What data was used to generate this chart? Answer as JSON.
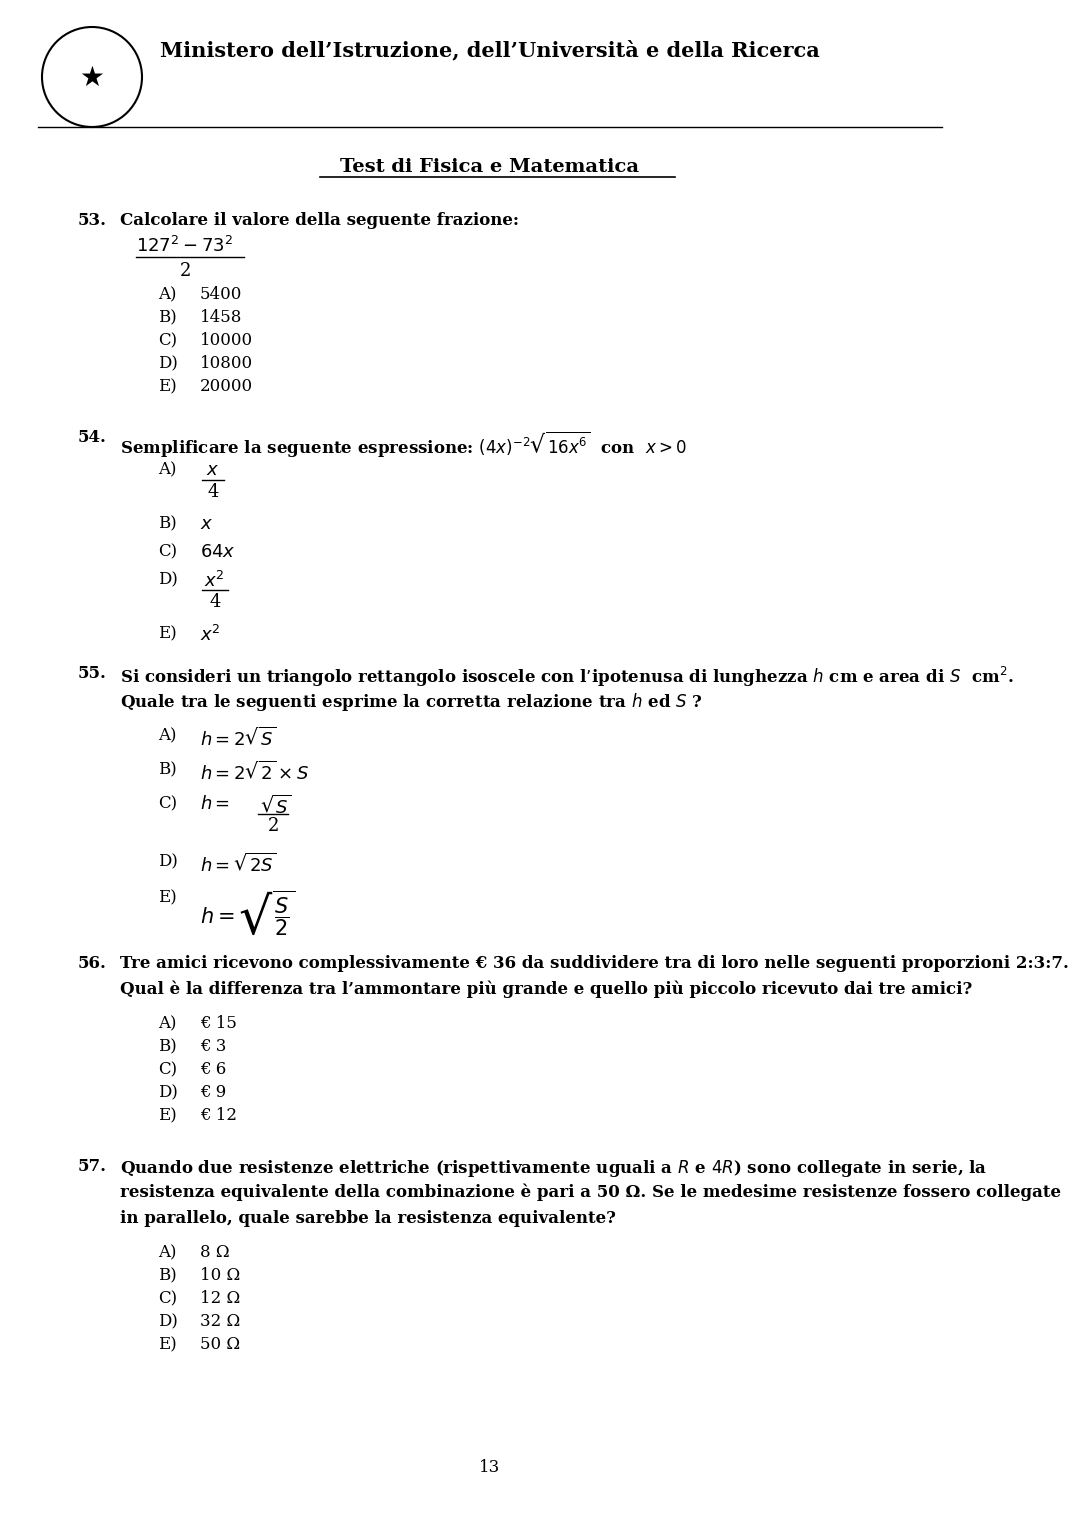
{
  "bg": "#ffffff",
  "fg": "#000000",
  "header_title": "Ministero dell’Istruzione, dell’Università e della Ricerca",
  "subtitle": "Test di Fisica e Matematica",
  "page_num": "13",
  "q53_text": "Calcolare il valore della seguente frazione:",
  "q53_answers": [
    "5400",
    "1458",
    "10000",
    "10800",
    "20000"
  ],
  "q54_text": "Semplificare la seguente espressione: $(4x)^{-2}\\sqrt{16x^6}$  con  $x > 0$",
  "q55_line1": "Si consideri un triangolo rettangolo isoscele con l’ipotenusa di lunghezza $h$ cm e area di $S$  cm$^2$.",
  "q55_line2": "Quale tra le seguenti esprime la corretta relazione tra $h$ ed $S$ ?",
  "q56_line1": "Tre amici ricevono complessivamente € 36 da suddividere tra di loro nelle seguenti proporzioni 2:3:7.",
  "q56_line2": "Qual è la differenza tra l’ammontare più grande e quello più piccolo ricevuto dai tre amici?",
  "q56_answers": [
    "€ 15",
    "€ 3",
    "€ 6",
    "€ 9",
    "€ 12"
  ],
  "q57_line1": "Quando due resistenze elettriche (rispettivamente uguali a $R$ e $4R$) sono collegate in serie, la",
  "q57_line2": "resistenza equivalente della combinazione è pari a 50 Ω. Se le medesime resistenze fossero collegate",
  "q57_line3": "in parallelo, quale sarebbe la resistenza equivalente?",
  "q57_answers": [
    "8 Ω",
    "10 Ω",
    "12 Ω",
    "32 Ω",
    "50 Ω"
  ]
}
